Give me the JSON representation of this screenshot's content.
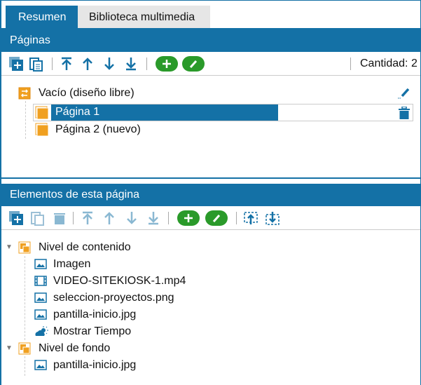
{
  "tabs": [
    {
      "label": "Resumen",
      "active": true
    },
    {
      "label": "Biblioteca multimedia",
      "active": false
    }
  ],
  "pages": {
    "header": "Páginas",
    "count_label": "Cantidad: 2",
    "layout": {
      "label": "Vacío (diseño libre)"
    },
    "items": [
      {
        "label": "Página 1",
        "selected": true
      },
      {
        "label": "Página 2 (nuevo)",
        "selected": false
      }
    ]
  },
  "elements": {
    "header": "Elementos de esta página",
    "groups": [
      {
        "label": "Nivel de contenido",
        "items": [
          {
            "label": "Imagen",
            "icon": "image-icon"
          },
          {
            "label": "VIDEO-SITEKIOSK-1.mp4",
            "icon": "film-icon"
          },
          {
            "label": "seleccion-proyectos.png",
            "icon": "image-icon"
          },
          {
            "label": "pantilla-inicio.jpg",
            "icon": "image-icon"
          },
          {
            "label": "Mostrar Tiempo",
            "icon": "weather-icon"
          }
        ]
      },
      {
        "label": "Nivel de fondo",
        "items": [
          {
            "label": "pantilla-inicio.jpg",
            "icon": "image-icon"
          }
        ]
      }
    ]
  },
  "colors": {
    "accent": "#1471a6",
    "green": "#2a9a2a",
    "orange": "#f0a020"
  }
}
